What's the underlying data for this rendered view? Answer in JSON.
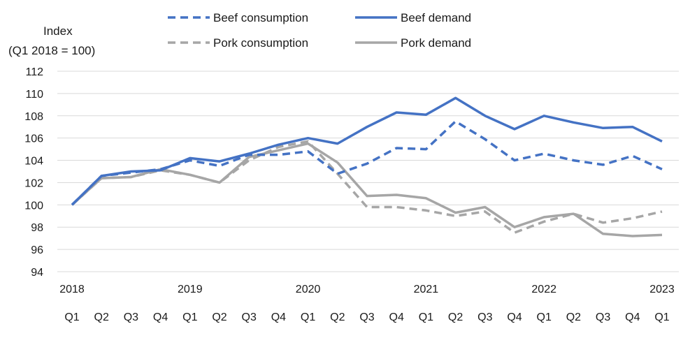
{
  "chart_data": {
    "type": "line",
    "ylabel_line1": "Index",
    "ylabel_line2": "(Q1 2018 = 100)",
    "ylim": [
      94,
      112
    ],
    "yticks": [
      94,
      96,
      98,
      100,
      102,
      104,
      106,
      108,
      110,
      112
    ],
    "grid": true,
    "legend_position": "top",
    "years": [
      "2018",
      "2019",
      "2020",
      "2021",
      "2022",
      "2023"
    ],
    "year_positions": [
      0,
      4,
      8,
      12,
      16,
      20
    ],
    "categories": [
      "Q1",
      "Q2",
      "Q3",
      "Q4",
      "Q1",
      "Q2",
      "Q3",
      "Q4",
      "Q1",
      "Q2",
      "Q3",
      "Q4",
      "Q1",
      "Q2",
      "Q3",
      "Q4",
      "Q1",
      "Q2",
      "Q3",
      "Q4",
      "Q1"
    ],
    "series": [
      {
        "name": "Beef consumption",
        "color": "#4472C4",
        "dash": true,
        "values": [
          100,
          102.6,
          102.9,
          103.2,
          104.0,
          103.5,
          104.5,
          104.5,
          104.8,
          102.8,
          103.7,
          105.1,
          105.0,
          107.5,
          105.9,
          104.0,
          104.6,
          104.0,
          103.6,
          104.4,
          103.2
        ]
      },
      {
        "name": "Beef demand",
        "color": "#4472C4",
        "dash": false,
        "values": [
          100,
          102.6,
          103.0,
          103.1,
          104.2,
          103.9,
          104.6,
          105.4,
          106.0,
          105.5,
          107.0,
          108.3,
          108.1,
          109.6,
          108.0,
          106.8,
          108.0,
          107.4,
          106.9,
          107.0,
          105.7
        ]
      },
      {
        "name": "Pork consumption",
        "color": "#A6A6A6",
        "dash": true,
        "values": [
          100,
          102.4,
          102.5,
          103.1,
          102.7,
          102.0,
          104.0,
          105.2,
          105.7,
          102.8,
          99.8,
          99.8,
          99.5,
          99.0,
          99.4,
          97.5,
          98.5,
          99.2,
          98.4,
          98.8,
          99.4
        ]
      },
      {
        "name": "Pork demand",
        "color": "#A6A6A6",
        "dash": false,
        "values": [
          100,
          102.4,
          102.5,
          103.2,
          102.7,
          102.0,
          104.3,
          104.9,
          105.5,
          103.8,
          100.8,
          100.9,
          100.6,
          99.3,
          99.8,
          98.0,
          98.9,
          99.2,
          97.4,
          97.2,
          97.3
        ]
      }
    ]
  }
}
